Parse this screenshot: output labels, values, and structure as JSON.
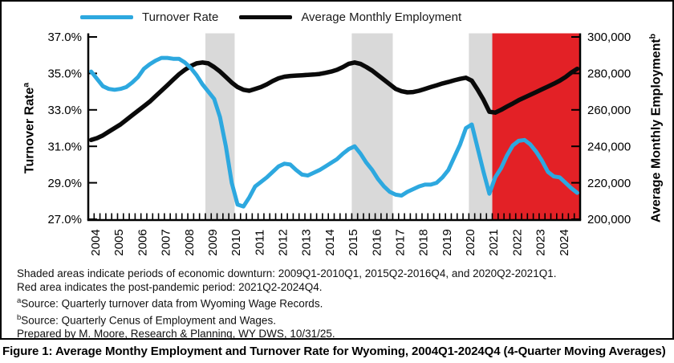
{
  "legend": {
    "items": [
      {
        "label": "Turnover Rate",
        "color": "#2DA8DF"
      },
      {
        "label": "Average Monthly Employment",
        "color": "#0a0a0a"
      }
    ]
  },
  "axes": {
    "left_title": {
      "text": "Turnover Rate",
      "sup": "a"
    },
    "right_title": {
      "text": "Average Monthly Employment",
      "sup": "b"
    },
    "left_ticks": [
      "37.0%",
      "35.0%",
      "33.0%",
      "31.0%",
      "29.0%",
      "27.0%"
    ],
    "right_ticks": [
      "300,000",
      "280,000",
      "260,000",
      "240,000",
      "220,000",
      "200,000"
    ],
    "x_ticks": [
      "2004",
      "2005",
      "2006",
      "2007",
      "2008",
      "2009",
      "2010",
      "2011",
      "2012",
      "2013",
      "2014",
      "2015",
      "2016",
      "2017",
      "2018",
      "2019",
      "2020",
      "2021",
      "2022",
      "2023",
      "2024"
    ]
  },
  "chart_data": {
    "type": "line",
    "x_range": "2004Q1-2024Q4",
    "quarters_per_year": 4,
    "left_axis": {
      "label": "Turnover Rate (a)",
      "min": 27.0,
      "max": 37.0,
      "unit": "%"
    },
    "right_axis": {
      "label": "Average Monthly Employment (b)",
      "min": 200000,
      "max": 300000
    },
    "grid": false,
    "legend_position": "top",
    "series": [
      {
        "name": "Turnover Rate",
        "axis": "left",
        "color": "#2DA8DF",
        "values": [
          35.1,
          34.7,
          34.3,
          34.15,
          34.1,
          34.15,
          34.25,
          34.5,
          34.8,
          35.25,
          35.5,
          35.7,
          35.85,
          35.85,
          35.8,
          35.8,
          35.6,
          35.3,
          34.9,
          34.4,
          34.0,
          33.6,
          32.6,
          31.0,
          29.0,
          27.8,
          27.7,
          28.2,
          28.8,
          29.05,
          29.3,
          29.6,
          29.9,
          30.05,
          30.0,
          29.7,
          29.45,
          29.4,
          29.55,
          29.7,
          29.9,
          30.1,
          30.3,
          30.6,
          30.85,
          31.0,
          30.6,
          30.1,
          29.7,
          29.2,
          28.8,
          28.5,
          28.35,
          28.3,
          28.5,
          28.65,
          28.8,
          28.9,
          28.9,
          29.0,
          29.3,
          29.7,
          30.4,
          31.1,
          32.0,
          32.2,
          30.9,
          29.6,
          28.4,
          29.3,
          29.8,
          30.5,
          31.05,
          31.3,
          31.35,
          31.1,
          30.7,
          30.2,
          29.6,
          29.35,
          29.3,
          29.0,
          28.7,
          28.45
        ]
      },
      {
        "name": "Average Monthly Employment",
        "axis": "right",
        "color": "#0a0a0a",
        "values": [
          243500,
          244500,
          246000,
          248000,
          250000,
          252000,
          254500,
          257000,
          259500,
          262000,
          264500,
          267500,
          270500,
          273500,
          276500,
          279500,
          282000,
          284000,
          285500,
          286000,
          285500,
          283500,
          281000,
          278000,
          275000,
          272500,
          271000,
          270500,
          271500,
          272500,
          274000,
          275800,
          277300,
          278200,
          278600,
          278800,
          279000,
          279200,
          279400,
          279700,
          280300,
          281000,
          282000,
          283500,
          285300,
          286000,
          285200,
          283500,
          281500,
          279000,
          276500,
          274000,
          271500,
          270200,
          269600,
          269800,
          270500,
          271500,
          272500,
          273500,
          274500,
          275300,
          276200,
          277000,
          277600,
          276000,
          271000,
          265500,
          259000,
          258500,
          260000,
          261800,
          263500,
          265300,
          266800,
          268300,
          269800,
          271300,
          272800,
          274300,
          276000,
          278000,
          280500,
          282500
        ]
      }
    ],
    "shaded_periods": [
      {
        "from": "2009Q1",
        "to": "2010Q1"
      },
      {
        "from": "2015Q2",
        "to": "2016Q4"
      },
      {
        "from": "2020Q2",
        "to": "2021Q1"
      }
    ],
    "red_period": {
      "from": "2021Q2",
      "to": "2024Q4"
    },
    "colors": {
      "downturn_band": "#D9D9D9",
      "post_pandemic_area": "#E32126"
    }
  },
  "footnotes": [
    {
      "sup": "",
      "text": "Shaded areas indicate periods of economic downturn: 2009Q1-2010Q1, 2015Q2-2016Q4, and 2020Q2-2021Q1."
    },
    {
      "sup": "",
      "text": "Red area indicates the post-pandemic period: 2021Q2-2024Q4."
    },
    {
      "sup": "a",
      "text": "Source: Quarterly turnover data from Wyoming Wage Records."
    },
    {
      "sup": "b",
      "text": "Source: Quarterly Cenus of Employment and Wages."
    },
    {
      "sup": "",
      "text": "Prepared by M. Moore, Research & Planning, WY DWS, 10/31/25."
    }
  ],
  "caption": "Figure 1: Average Monthy Employment and Turnover Rate for Wyoming, 2004Q1-2024Q4 (4-Quarter Moving Averages)"
}
